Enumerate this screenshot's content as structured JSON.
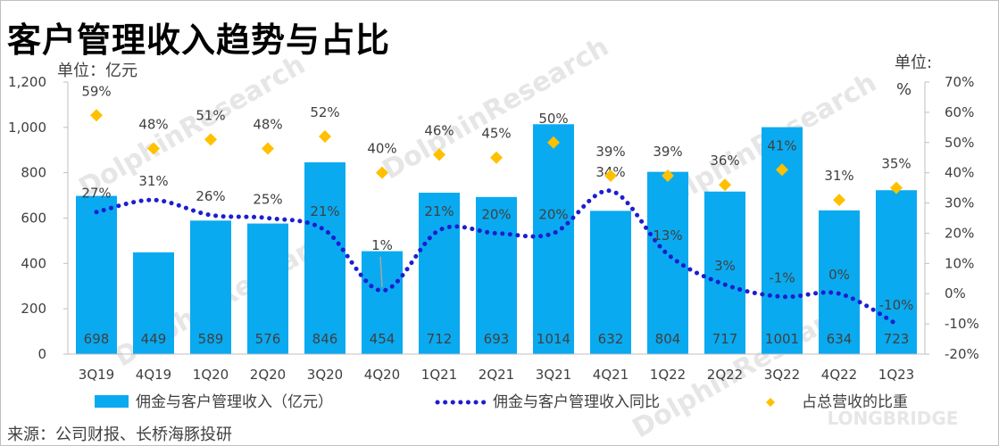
{
  "title": "客户管理收入趋势与占比",
  "unit_left": "单位：亿元",
  "unit_right": "单位:",
  "unit_right_pct": "%",
  "source": "来源：公司财报、长桥海豚投研",
  "colors": {
    "bar": "#0aaaf0",
    "line": "#1d1ecf",
    "diamond": "#ffc000"
  },
  "chart_data": {
    "type": "bar",
    "categories": [
      "3Q19",
      "4Q19",
      "1Q20",
      "2Q20",
      "3Q20",
      "4Q20",
      "1Q21",
      "2Q21",
      "3Q21",
      "4Q21",
      "1Q22",
      "2Q22",
      "3Q22",
      "4Q22",
      "1Q23"
    ],
    "y_left": {
      "min": 0,
      "max": 1200,
      "ticks": [
        "0",
        "200",
        "400",
        "600",
        "800",
        "1,000",
        "1,200"
      ]
    },
    "y_right": {
      "min": -20,
      "max": 70,
      "ticks": [
        "-20%",
        "-10%",
        "0%",
        "10%",
        "20%",
        "30%",
        "40%",
        "50%",
        "60%",
        "70%"
      ]
    },
    "series": [
      {
        "name": "佣金与客户管理收入（亿元）",
        "type": "bar",
        "axis": "left",
        "values": [
          698,
          449,
          589,
          576,
          846,
          454,
          712,
          693,
          1014,
          632,
          804,
          717,
          1001,
          634,
          723
        ],
        "labels": [
          "698",
          "449",
          "589",
          "576",
          "846",
          "454",
          "712",
          "693",
          "1014",
          "632",
          "804",
          "717",
          "1001",
          "634",
          "723"
        ]
      },
      {
        "name": "佣金与客户管理收入同比",
        "type": "line",
        "style": "dotted",
        "axis": "right",
        "values": [
          27,
          31,
          26,
          25,
          21,
          1,
          21,
          20,
          20,
          34,
          13,
          3,
          -1,
          0,
          -10
        ],
        "labels": [
          "27%",
          "31%",
          "26%",
          "25%",
          "21%",
          "1%",
          "21%",
          "20%",
          "20%",
          "34%",
          "13%",
          "3%",
          "-1%",
          "0%",
          "-10%"
        ]
      },
      {
        "name": "占总营收的比重",
        "type": "scatter",
        "marker": "diamond",
        "axis": "right",
        "values": [
          59,
          48,
          51,
          48,
          52,
          40,
          46,
          45,
          50,
          39,
          39,
          36,
          41,
          31,
          35
        ],
        "labels": [
          "59%",
          "48%",
          "51%",
          "48%",
          "52%",
          "40%",
          "46%",
          "45%",
          "50%",
          "39%",
          "39%",
          "36%",
          "41%",
          "31%",
          "35%"
        ]
      }
    ],
    "grid": false,
    "legend": "bottom"
  },
  "watermark": {
    "top": "LONGBRIDGE",
    "main": "DolphinResearch"
  }
}
